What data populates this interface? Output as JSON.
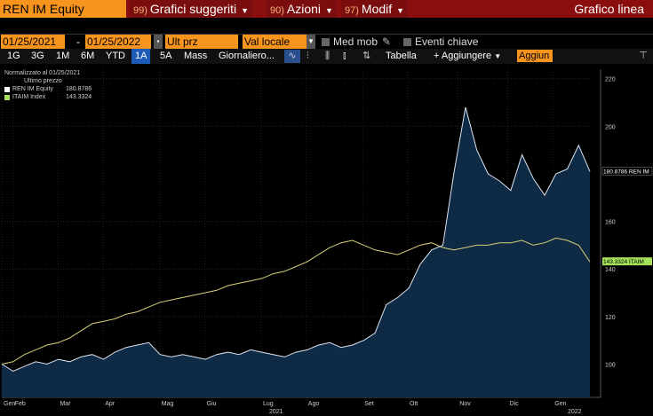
{
  "toolbar": {
    "ticker": "REN IM Equity",
    "menus": [
      {
        "num": "99)",
        "label": "Grafici suggeriti"
      },
      {
        "num": "90)",
        "label": "Azioni"
      },
      {
        "num": "97)",
        "label": "Modif"
      }
    ],
    "chart_type_title": "Grafico linea"
  },
  "params": {
    "start_date": "01/25/2021",
    "end_date": "01/25/2022",
    "price_field": "Ult prz",
    "currency": "Val locale",
    "moving_avg": "Med mob",
    "key_events": "Eventi chiave"
  },
  "ranges": [
    "1G",
    "3G",
    "1M",
    "6M",
    "YTD",
    "1A",
    "5A",
    "Mass",
    "Giornaliero"
  ],
  "selected_range": "1A",
  "tools": {
    "table": "Tabella",
    "add": "+ Aggiungere",
    "add_field": "Aggiun"
  },
  "colors": {
    "accent_orange": "#f7941d",
    "header_red": "#8b0e0e",
    "equity_line": "#dde4ef",
    "index_line": "#d8d17a",
    "area_fill": "#0f2a45",
    "index_label_bg": "#a6e05a"
  },
  "legend": {
    "header": "Normalizzato al 01/25/2021",
    "subheader": "Ultimo prezzo",
    "entries": [
      {
        "name": "REN IM Equity",
        "value": "180.8786"
      },
      {
        "name": "ITAIM Index",
        "value": "143.3324"
      }
    ]
  },
  "chart_data": {
    "type": "area",
    "x": [
      "2021-01-25",
      "2021-02-01",
      "2021-02-08",
      "2021-02-15",
      "2021-02-22",
      "2021-03-01",
      "2021-03-08",
      "2021-03-15",
      "2021-03-22",
      "2021-03-29",
      "2021-04-05",
      "2021-04-12",
      "2021-04-19",
      "2021-04-26",
      "2021-05-03",
      "2021-05-10",
      "2021-05-17",
      "2021-05-24",
      "2021-05-31",
      "2021-06-07",
      "2021-06-14",
      "2021-06-21",
      "2021-06-28",
      "2021-07-05",
      "2021-07-12",
      "2021-07-19",
      "2021-07-26",
      "2021-08-02",
      "2021-08-09",
      "2021-08-16",
      "2021-08-23",
      "2021-08-30",
      "2021-09-06",
      "2021-09-13",
      "2021-09-20",
      "2021-09-27",
      "2021-10-04",
      "2021-10-11",
      "2021-10-18",
      "2021-10-25",
      "2021-11-01",
      "2021-11-08",
      "2021-11-15",
      "2021-11-22",
      "2021-11-29",
      "2021-12-06",
      "2021-12-13",
      "2021-12-20",
      "2021-12-27",
      "2022-01-03",
      "2022-01-10",
      "2022-01-17",
      "2022-01-25"
    ],
    "series": [
      {
        "name": "REN IM Equity",
        "values": [
          100,
          97,
          99,
          101,
          100,
          102,
          101,
          103,
          104,
          102,
          105,
          107,
          108,
          109,
          104,
          103,
          104,
          103,
          102,
          104,
          105,
          104,
          106,
          105,
          104,
          103,
          105,
          106,
          108,
          109,
          107,
          108,
          110,
          113,
          125,
          128,
          132,
          142,
          148,
          150,
          181,
          208,
          190,
          180,
          177,
          173,
          188,
          178,
          171,
          180,
          182,
          192,
          181
        ]
      },
      {
        "name": "ITAIM Index",
        "values": [
          100,
          101,
          104,
          106,
          108,
          109,
          111,
          114,
          117,
          118,
          119,
          121,
          122,
          124,
          126,
          127,
          128,
          129,
          130,
          131,
          133,
          134,
          135,
          136,
          138,
          139,
          141,
          143,
          146,
          149,
          151,
          152,
          150,
          148,
          147,
          146,
          148,
          150,
          151,
          149,
          148,
          149,
          150,
          150,
          151,
          151,
          152,
          150,
          151,
          153,
          152,
          150,
          143
        ]
      }
    ],
    "xaxis_ticks": [
      "Gen",
      "Feb",
      "Mar",
      "Apr",
      "Mag",
      "Giu",
      "Lug",
      "Ago",
      "Set",
      "Ott",
      "Nov",
      "Dic",
      "Gen"
    ],
    "year_labels": [
      "2021",
      "2022"
    ],
    "yaxis_ticks": [
      100,
      120,
      140,
      160,
      200,
      220
    ],
    "ylim": [
      86,
      224
    ],
    "last_value_labels": [
      "180.8786 REN IM",
      "143.3324 ITAIM"
    ],
    "grid": true
  }
}
